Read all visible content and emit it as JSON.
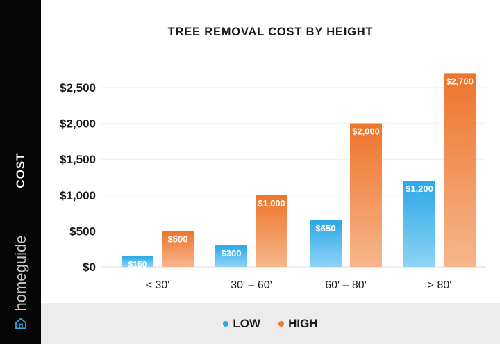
{
  "chart_data": {
    "type": "bar",
    "title": "TREE REMOVAL COST BY HEIGHT",
    "ylabel": "COST",
    "xlabel": "",
    "categories": [
      "< 30'",
      "30' – 60'",
      "60' – 80'",
      "> 80'"
    ],
    "series": [
      {
        "name": "LOW",
        "values": [
          150,
          300,
          650,
          1200
        ],
        "labels": [
          "$150",
          "$300",
          "$650",
          "$1,200"
        ],
        "color": "#29a9e6"
      },
      {
        "name": "HIGH",
        "values": [
          500,
          1000,
          2000,
          2700
        ],
        "labels": [
          "$500",
          "$1,000",
          "$2,000",
          "$2,700"
        ],
        "color": "#ef7a2f"
      }
    ],
    "ylim": [
      0,
      2500
    ],
    "yticks": [
      0,
      500,
      1000,
      1500,
      2000,
      2500
    ],
    "ytick_labels": [
      "$0",
      "$500",
      "$1,000",
      "$1,500",
      "$2,000",
      "$2,500"
    ],
    "grid": true,
    "legend_position": "bottom"
  },
  "brand": {
    "name": "homeguide",
    "icon": "house-icon"
  },
  "colors": {
    "sidebar": "#050505",
    "legend_band": "#ececec",
    "low": "#29a9e6",
    "high": "#ef7a2f"
  }
}
